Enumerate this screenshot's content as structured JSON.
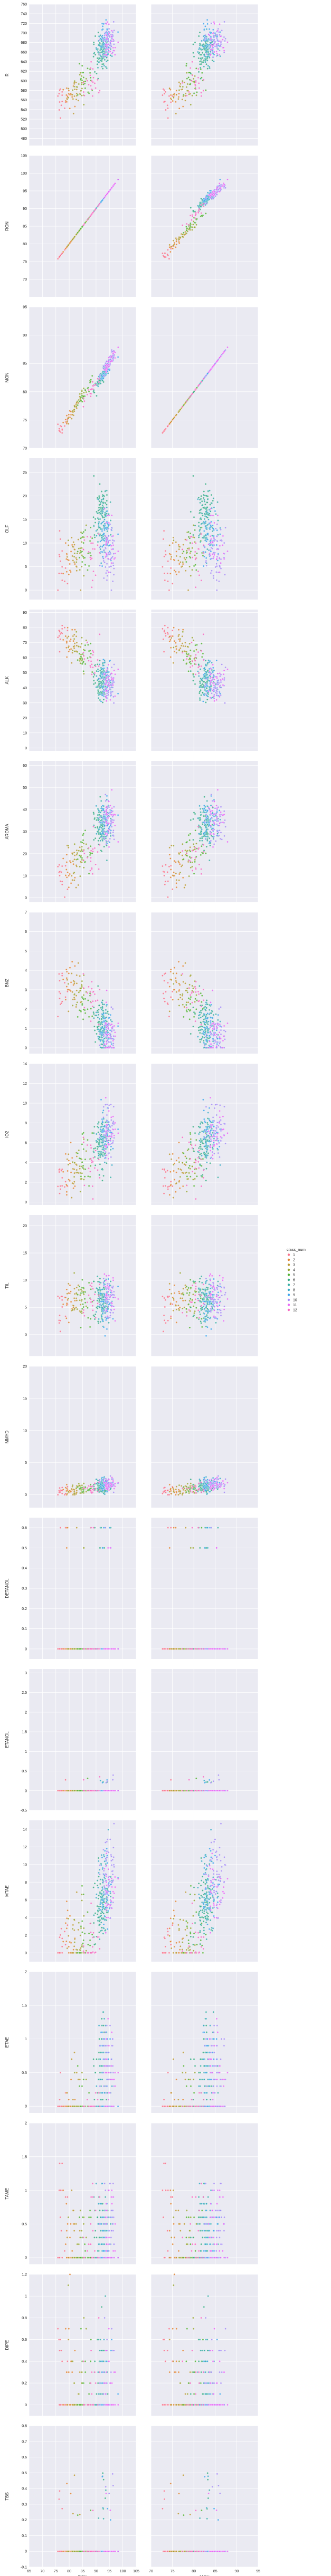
{
  "chart_data": {
    "type": "scatter",
    "layout": "pairgrid",
    "x_vars": [
      "RON",
      "MON"
    ],
    "x_ticks": {
      "RON": [
        65,
        70,
        75,
        80,
        85,
        90,
        95,
        100,
        105
      ],
      "MON": [
        70,
        75,
        80,
        85,
        90,
        95
      ]
    },
    "xlim": {
      "RON": [
        65,
        105
      ],
      "MON": [
        70,
        95
      ]
    },
    "rows": [
      {
        "ylabel": "R",
        "ylim": [
          465,
          760
        ],
        "yticks": [
          480,
          500,
          520,
          540,
          560,
          580,
          600,
          620,
          640,
          660,
          680,
          700,
          720,
          740,
          760
        ]
      },
      {
        "ylabel": "RON",
        "ylim": [
          65,
          105
        ],
        "yticks": [
          70,
          75,
          80,
          85,
          90,
          95,
          100,
          105
        ]
      },
      {
        "ylabel": "MON",
        "ylim": [
          70,
          95
        ],
        "yticks": [
          70,
          75,
          80,
          85,
          90,
          95
        ]
      },
      {
        "ylabel": "OLF",
        "ylim": [
          -2,
          28
        ],
        "yticks": [
          0,
          5,
          10,
          15,
          20,
          25
        ]
      },
      {
        "ylabel": "ALK",
        "ylim": [
          -2,
          92
        ],
        "yticks": [
          0,
          10,
          20,
          30,
          40,
          50,
          60,
          70,
          80,
          90
        ]
      },
      {
        "ylabel": "AROMA",
        "ylim": [
          -2,
          62
        ],
        "yticks": [
          0,
          10,
          20,
          30,
          40,
          50,
          60
        ]
      },
      {
        "ylabel": "BNZ",
        "ylim": [
          -0.3,
          7
        ],
        "yticks": [
          0,
          1,
          2,
          3,
          4,
          5,
          6,
          7
        ]
      },
      {
        "ylabel": "IO2",
        "ylim": [
          -0.3,
          14
        ],
        "yticks": [
          0,
          2,
          4,
          6,
          8,
          10,
          12,
          14
        ]
      },
      {
        "ylabel": "TIL",
        "ylim": [
          -4,
          22
        ],
        "yticks": [
          -5,
          0,
          5,
          10,
          15,
          20
        ]
      },
      {
        "ylabel": "MMYD",
        "ylim": [
          -2,
          20
        ],
        "yticks": [
          0,
          5,
          10,
          15,
          20
        ]
      },
      {
        "ylabel": "DETANOL",
        "ylim": [
          -0.05,
          0.65
        ],
        "yticks": [
          0.0,
          0.1,
          0.2,
          0.3,
          0.4,
          0.5,
          0.6
        ]
      },
      {
        "ylabel": "ETANOL",
        "ylim": [
          -0.5,
          3.1
        ],
        "yticks": [
          -0.5,
          0.0,
          0.5,
          1.0,
          1.5,
          2.0,
          2.5,
          3.0
        ]
      },
      {
        "ylabel": "MTAE",
        "ylim": [
          -1,
          15
        ],
        "yticks": [
          0,
          2,
          4,
          6,
          8,
          10,
          12,
          14
        ]
      },
      {
        "ylabel": "ETAE",
        "ylim": [
          -0.1,
          2.0
        ],
        "yticks": [
          0.0,
          0.5,
          1.0,
          1.5,
          2.0
        ]
      },
      {
        "ylabel": "TAME",
        "ylim": [
          -0.1,
          2.0
        ],
        "yticks": [
          0.0,
          0.5,
          1.0,
          1.5,
          2.0
        ]
      },
      {
        "ylabel": "DIPE",
        "ylim": [
          -0.1,
          1.2
        ],
        "yticks": [
          0.0,
          0.2,
          0.4,
          0.6,
          0.8,
          1.0,
          1.2
        ]
      },
      {
        "ylabel": "TBS",
        "ylim": [
          -0.1,
          0.8
        ],
        "yticks": [
          -0.1,
          0.0,
          0.1,
          0.2,
          0.3,
          0.4,
          0.5,
          0.6,
          0.7,
          0.8
        ]
      }
    ],
    "hue": "class_num",
    "legend_title": "class_num",
    "legend_entries": [
      "1",
      "2",
      "3",
      "4",
      "5",
      "6",
      "7",
      "8",
      "9",
      "10",
      "11",
      "12"
    ],
    "legend_position": "right",
    "palette": [
      "#f77189",
      "#e18432",
      "#bb9832",
      "#97a431",
      "#50b131",
      "#35ac83",
      "#36ada4",
      "#38a9c5",
      "#3ba3ec",
      "#a48cf4",
      "#e866f4",
      "#f668c2"
    ],
    "class_centers": [
      {
        "class": "1",
        "RON": 77,
        "MON": 73.5,
        "R": 556,
        "OLF": 5,
        "ALK": 78,
        "AROMA": 10,
        "BNZ": 3.2,
        "IO2": 2.5,
        "TIL": 5,
        "MMYD": 0.6,
        "DETANOL": 0,
        "ETANOL": 0,
        "MTAE": 0.6,
        "ETAE": 0,
        "TAME": 0.8,
        "DIPE": 0.4,
        "TBS": 0
      },
      {
        "class": "2",
        "RON": 80,
        "MON": 76,
        "R": 565,
        "OLF": 6,
        "ALK": 72,
        "AROMA": 12,
        "BNZ": 3.6,
        "IO2": 3,
        "TIL": 6,
        "MMYD": 0.6,
        "DETANOL": 0,
        "ETANOL": 0,
        "MTAE": 1,
        "ETAE": 0,
        "TAME": 0.5,
        "DIPE": 0.3,
        "TBS": 0
      },
      {
        "class": "3",
        "RON": 82,
        "MON": 77,
        "R": 575,
        "OLF": 7,
        "ALK": 68,
        "AROMA": 15,
        "BNZ": 3.3,
        "IO2": 3.3,
        "TIL": 6,
        "MMYD": 0.7,
        "DETANOL": 0,
        "ETANOL": 0,
        "MTAE": 1.3,
        "ETAE": 0,
        "TAME": 0.3,
        "DIPE": 0.2,
        "TBS": 0
      },
      {
        "class": "4",
        "RON": 84,
        "MON": 79,
        "R": 590,
        "OLF": 8,
        "ALK": 65,
        "AROMA": 18,
        "BNZ": 2.8,
        "IO2": 3.5,
        "TIL": 7,
        "MMYD": 0.9,
        "DETANOL": 0,
        "ETANOL": 0,
        "MTAE": 1.5,
        "ETAE": 0,
        "TAME": 0.2,
        "DIPE": 0.2,
        "TBS": 0
      },
      {
        "class": "5",
        "RON": 86,
        "MON": 80,
        "R": 600,
        "OLF": 9,
        "ALK": 60,
        "AROMA": 22,
        "BNZ": 2.4,
        "IO2": 3.8,
        "TIL": 7,
        "MMYD": 1,
        "DETANOL": 0,
        "ETANOL": 0,
        "MTAE": 2,
        "ETAE": 0,
        "TAME": 0.1,
        "DIPE": 0.1,
        "TBS": 0
      },
      {
        "class": "6",
        "RON": 92,
        "MON": 82.5,
        "R": 660,
        "OLF": 17,
        "ALK": 44,
        "AROMA": 32,
        "BNZ": 1.2,
        "IO2": 6,
        "TIL": 6,
        "MMYD": 1.2,
        "DETANOL": 0,
        "ETANOL": 0,
        "MTAE": 5,
        "ETAE": 0.5,
        "TAME": 0.3,
        "DIPE": 0.1,
        "TBS": 0
      },
      {
        "class": "7",
        "RON": 92.5,
        "MON": 83,
        "R": 665,
        "OLF": 15,
        "ALK": 45,
        "AROMA": 33,
        "BNZ": 1.1,
        "IO2": 6.3,
        "TIL": 6,
        "MMYD": 1.3,
        "DETANOL": 0,
        "ETANOL": 0,
        "MTAE": 6,
        "ETAE": 0.5,
        "TAME": 0.3,
        "DIPE": 0,
        "TBS": 0
      },
      {
        "class": "8",
        "RON": 93,
        "MON": 83.5,
        "R": 670,
        "OLF": 12,
        "ALK": 46,
        "AROMA": 34,
        "BNZ": 1,
        "IO2": 6.5,
        "TIL": 6,
        "MMYD": 1.4,
        "DETANOL": 0,
        "ETANOL": 0,
        "MTAE": 7,
        "ETAE": 0.6,
        "TAME": 0.4,
        "DIPE": 0,
        "TBS": 0
      },
      {
        "class": "9",
        "RON": 94,
        "MON": 84,
        "R": 690,
        "OLF": 10,
        "ALK": 45,
        "AROMA": 36,
        "BNZ": 0.8,
        "IO2": 7,
        "TIL": 6,
        "MMYD": 1.5,
        "DETANOL": 0,
        "ETANOL": 0,
        "MTAE": 8,
        "ETAE": 0.6,
        "TAME": 0.4,
        "DIPE": 0,
        "TBS": 0
      },
      {
        "class": "10",
        "RON": 95,
        "MON": 85.5,
        "R": 680,
        "OLF": 8,
        "ALK": 42,
        "AROMA": 35,
        "BNZ": 0.6,
        "IO2": 7.5,
        "TIL": 7,
        "MMYD": 1.8,
        "DETANOL": 0,
        "ETANOL": 0,
        "MTAE": 9,
        "ETAE": 0.7,
        "TAME": 0.5,
        "DIPE": 0,
        "TBS": 0
      },
      {
        "class": "11",
        "RON": 95,
        "MON": 85,
        "R": 675,
        "OLF": 9,
        "ALK": 44,
        "AROMA": 34,
        "BNZ": 0.8,
        "IO2": 7,
        "TIL": 7,
        "MMYD": 1.6,
        "DETANOL": 0,
        "ETANOL": 0.3,
        "MTAE": 7,
        "ETAE": 0.6,
        "TAME": 0.5,
        "DIPE": 0,
        "TBS": 0
      },
      {
        "class": "12",
        "RON": 88,
        "MON": 80,
        "R": 600,
        "OLF": 8,
        "ALK": 60,
        "AROMA": 18,
        "BNZ": 2.5,
        "IO2": 4,
        "TIL": 7,
        "MMYD": 0.8,
        "DETANOL": 0,
        "ETANOL": 0,
        "MTAE": 2,
        "ETAE": 0,
        "TAME": 0.4,
        "DIPE": 0.2,
        "TBS": 0
      }
    ]
  }
}
